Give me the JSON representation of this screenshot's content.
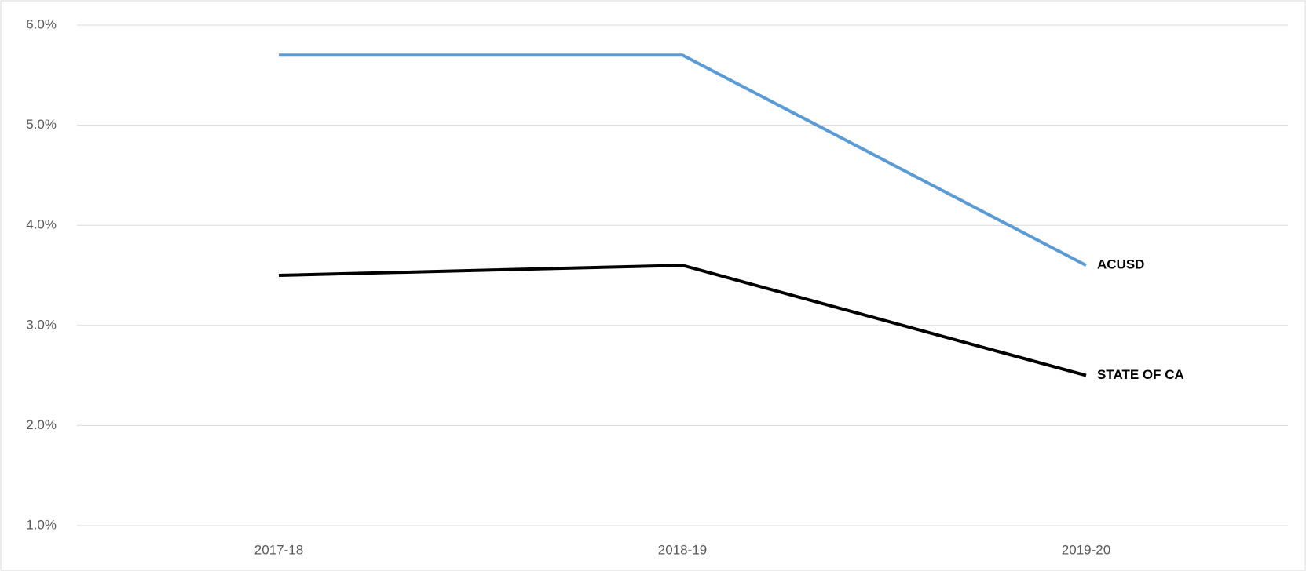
{
  "chart_data": {
    "type": "line",
    "categories": [
      "2017-18",
      "2018-19",
      "2019-20"
    ],
    "series": [
      {
        "name": "ACUSD",
        "color": "#5b9bd5",
        "values": [
          5.7,
          5.7,
          3.6
        ]
      },
      {
        "name": "STATE OF CA",
        "color": "#000000",
        "values": [
          3.5,
          3.6,
          2.5
        ]
      }
    ],
    "ylim": [
      1,
      6
    ],
    "yticks": [
      {
        "value": 1,
        "label": "1.0%"
      },
      {
        "value": 2,
        "label": "2.0%"
      },
      {
        "value": 3,
        "label": "3.0%"
      },
      {
        "value": 4,
        "label": "4.0%"
      },
      {
        "value": 5,
        "label": "5.0%"
      },
      {
        "value": 6,
        "label": "6.0%"
      }
    ],
    "grid": true
  }
}
